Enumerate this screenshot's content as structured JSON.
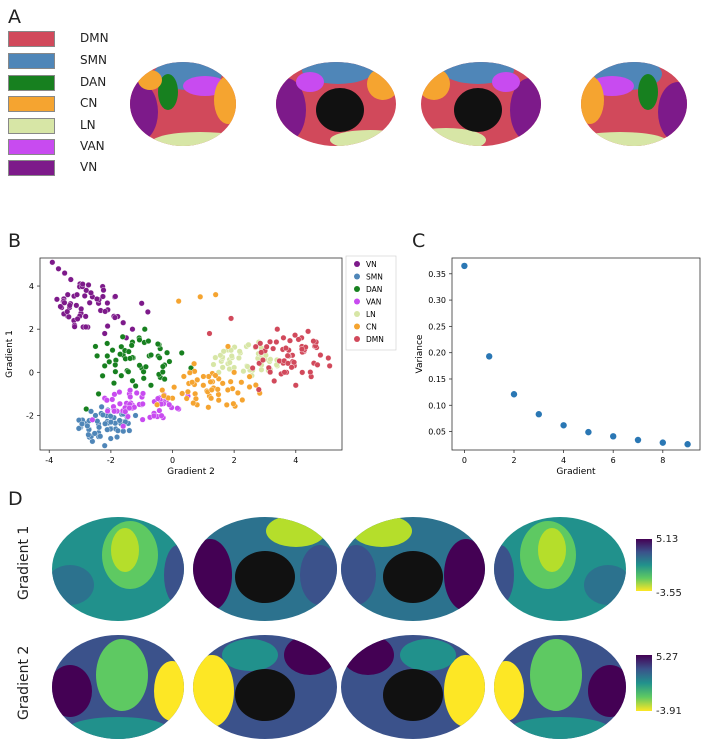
{
  "panels": {
    "a": "A",
    "b": "B",
    "c": "C",
    "d": "D"
  },
  "networks": [
    {
      "name": "DMN",
      "color": "#d1495b"
    },
    {
      "name": "SMN",
      "color": "#4f86b8"
    },
    {
      "name": "DAN",
      "color": "#17801f"
    },
    {
      "name": "CN",
      "color": "#f5a430"
    },
    {
      "name": "LN",
      "color": "#d7e6a6"
    },
    {
      "name": "VAN",
      "color": "#c84bf0"
    },
    {
      "name": "VN",
      "color": "#7d1a8a"
    }
  ],
  "gradient_rows": [
    {
      "label": "Gradient 1",
      "max": "5.13",
      "min": "-3.55"
    },
    {
      "label": "Gradient 2",
      "max": "5.27",
      "min": "-3.91"
    }
  ],
  "colormap": [
    "#440154",
    "#3b528b",
    "#21918c",
    "#5ec962",
    "#fde725"
  ],
  "chart_data": [
    {
      "type": "scatter",
      "xlabel": "Gradient 2",
      "ylabel": "Gradient 1",
      "xlim": [
        -4.3,
        5.5
      ],
      "ylim": [
        -3.6,
        5.3
      ],
      "xticks": [
        "-4",
        "-2",
        "0",
        "2",
        "4"
      ],
      "yticks": [
        "-2",
        "0",
        "2",
        "4"
      ],
      "legend_position": "outside-right",
      "series": [
        {
          "name": "VN",
          "color": "#7d1a8a",
          "center": [
            -2.8,
            3.0
          ],
          "points": [
            [
              -3.9,
              5.1
            ],
            [
              -3.7,
              4.8
            ],
            [
              -3.5,
              4.6
            ],
            [
              -3.3,
              4.3
            ],
            [
              -3.0,
              4.1
            ],
            [
              -2.8,
              3.8
            ],
            [
              -2.6,
              3.5
            ],
            [
              -2.4,
              3.2
            ],
            [
              -2.1,
              2.9
            ],
            [
              -1.9,
              2.6
            ],
            [
              -1.6,
              2.3
            ],
            [
              -1.3,
              2.0
            ],
            [
              -3.6,
              3.0
            ],
            [
              -3.2,
              2.4
            ],
            [
              -2.9,
              2.1
            ],
            [
              -3.4,
              3.6
            ],
            [
              -2.2,
              1.8
            ],
            [
              -1.0,
              3.2
            ],
            [
              -0.8,
              2.8
            ],
            [
              -1.5,
              1.6
            ]
          ]
        },
        {
          "name": "SMN",
          "color": "#4f86b8",
          "center": [
            -2.2,
            -2.4
          ],
          "points": [
            [
              -2.8,
              -2.4
            ],
            [
              -2.6,
              -3.2
            ],
            [
              -2.4,
              -2.8
            ],
            [
              -2.2,
              -3.4
            ],
            [
              -2.0,
              -2.6
            ],
            [
              -1.8,
              -3.0
            ],
            [
              -1.6,
              -2.3
            ],
            [
              -1.4,
              -2.7
            ],
            [
              -2.5,
              -2.0
            ],
            [
              -2.1,
              -1.9
            ],
            [
              -1.9,
              -2.1
            ],
            [
              -2.7,
              -3.0
            ],
            [
              -1.2,
              -2.0
            ],
            [
              -2.3,
              -1.6
            ]
          ]
        },
        {
          "name": "DAN",
          "color": "#17801f",
          "center": [
            -1.2,
            0.5
          ],
          "points": [
            [
              -2.5,
              1.2
            ],
            [
              -2.2,
              0.3
            ],
            [
              -1.9,
              -0.5
            ],
            [
              -1.6,
              0.8
            ],
            [
              -1.3,
              1.4
            ],
            [
              -1.0,
              0.2
            ],
            [
              -0.7,
              -0.6
            ],
            [
              -0.4,
              1.1
            ],
            [
              -0.1,
              0.5
            ],
            [
              0.3,
              0.9
            ],
            [
              -2.8,
              -1.7
            ],
            [
              -2.4,
              -1.0
            ],
            [
              -0.9,
              2.0
            ],
            [
              0.6,
              0.2
            ]
          ]
        },
        {
          "name": "VAN",
          "color": "#c84bf0",
          "center": [
            -1.0,
            -1.5
          ],
          "points": [
            [
              -2.2,
              -1.2
            ],
            [
              -1.8,
              -1.8
            ],
            [
              -1.4,
              -1.0
            ],
            [
              -1.0,
              -1.5
            ],
            [
              -0.6,
              -1.9
            ],
            [
              -0.2,
              -1.3
            ],
            [
              0.2,
              -1.7
            ],
            [
              -2.6,
              -2.2
            ],
            [
              -1.6,
              -2.5
            ],
            [
              0.5,
              -1.1
            ]
          ]
        },
        {
          "name": "LN",
          "color": "#d7e6a6",
          "center": [
            2.4,
            0.5
          ],
          "points": [
            [
              1.8,
              0.4
            ],
            [
              2.2,
              0.9
            ],
            [
              2.6,
              0.1
            ],
            [
              3.0,
              0.6
            ],
            [
              2.4,
              1.2
            ],
            [
              1.5,
              0.0
            ],
            [
              2.8,
              1.4
            ],
            [
              3.4,
              0.3
            ]
          ]
        },
        {
          "name": "CN",
          "color": "#f5a430",
          "center": [
            1.2,
            -0.8
          ],
          "points": [
            [
              -0.5,
              -1.5
            ],
            [
              0.0,
              -1.2
            ],
            [
              0.5,
              -0.9
            ],
            [
              1.0,
              -0.6
            ],
            [
              1.5,
              -0.3
            ],
            [
              2.0,
              0.0
            ],
            [
              1.2,
              -1.1
            ],
            [
              0.7,
              0.4
            ],
            [
              1.8,
              1.2
            ],
            [
              2.5,
              -0.2
            ],
            [
              0.9,
              3.5
            ],
            [
              1.4,
              3.6
            ],
            [
              0.2,
              3.3
            ]
          ]
        },
        {
          "name": "DMN",
          "color": "#d1495b",
          "center": [
            3.8,
            0.8
          ],
          "points": [
            [
              2.6,
              0.2
            ],
            [
              3.0,
              1.0
            ],
            [
              3.3,
              -0.4
            ],
            [
              3.6,
              1.6
            ],
            [
              3.9,
              0.5
            ],
            [
              4.2,
              1.2
            ],
            [
              4.5,
              -0.2
            ],
            [
              4.8,
              0.8
            ],
            [
              5.1,
              0.3
            ],
            [
              3.4,
              2.0
            ],
            [
              2.8,
              -0.8
            ],
            [
              4.0,
              -0.6
            ],
            [
              4.4,
              1.9
            ],
            [
              3.7,
              0.0
            ],
            [
              1.9,
              2.5
            ],
            [
              1.2,
              1.8
            ]
          ]
        }
      ]
    },
    {
      "type": "scatter",
      "xlabel": "Gradient",
      "ylabel": "Variance",
      "xlim": [
        -0.5,
        9.5
      ],
      "ylim": [
        0.015,
        0.38
      ],
      "xticks": [
        "0",
        "2",
        "4",
        "6",
        "8"
      ],
      "yticks": [
        "0.05",
        "0.10",
        "0.15",
        "0.20",
        "0.25",
        "0.30",
        "0.35"
      ],
      "x": [
        0,
        1,
        2,
        3,
        4,
        5,
        6,
        7,
        8,
        9
      ],
      "values": [
        0.365,
        0.193,
        0.121,
        0.083,
        0.062,
        0.049,
        0.041,
        0.034,
        0.029,
        0.026
      ],
      "color": "#2a77b4"
    }
  ]
}
